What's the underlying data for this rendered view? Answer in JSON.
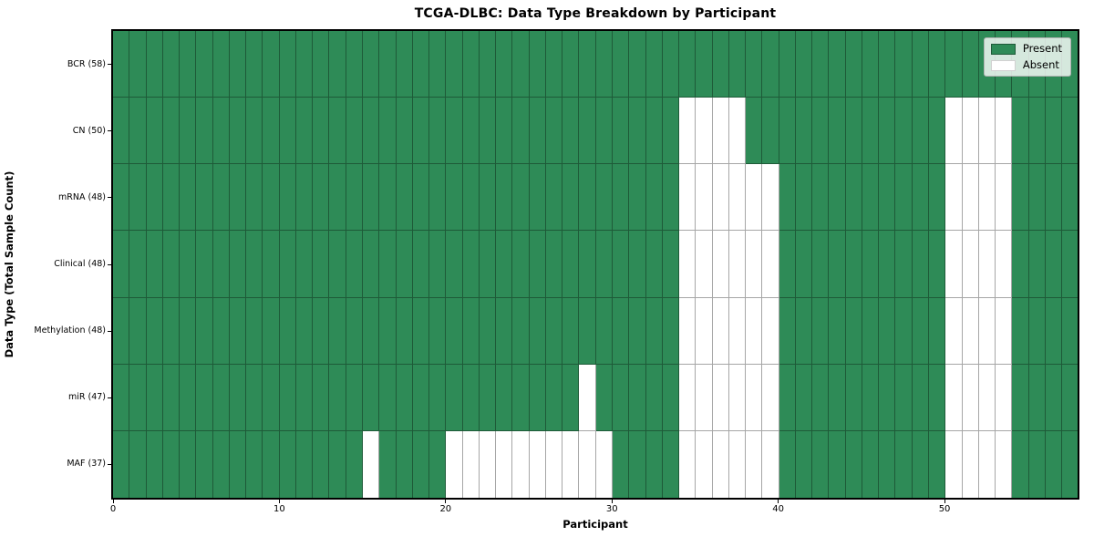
{
  "chart_data": {
    "type": "heatmap",
    "title": "TCGA-DLBC: Data Type Breakdown by Participant",
    "xlabel": "Participant",
    "ylabel": "Data Type (Total Sample Count)",
    "n_participants": 58,
    "x_axis_range": [
      0,
      58
    ],
    "x_ticks": [
      0,
      10,
      20,
      30,
      40,
      50
    ],
    "grid": true,
    "legend_position": "upper right",
    "colors": {
      "present": "#2e8b57",
      "absent": "#ffffff"
    },
    "legend": [
      {
        "label": "Present",
        "key": "present"
      },
      {
        "label": "Absent",
        "key": "absent"
      }
    ],
    "rows": [
      {
        "label": "BCR (58)",
        "data_type": "BCR",
        "total_samples": 58,
        "absent_participants": []
      },
      {
        "label": "CN (50)",
        "data_type": "CN",
        "total_samples": 50,
        "absent_participants": [
          34,
          35,
          36,
          37,
          50,
          51,
          52,
          53
        ]
      },
      {
        "label": "mRNA (48)",
        "data_type": "mRNA",
        "total_samples": 48,
        "absent_participants": [
          34,
          35,
          36,
          37,
          38,
          39,
          50,
          51,
          52,
          53
        ]
      },
      {
        "label": "Clinical (48)",
        "data_type": "Clinical",
        "total_samples": 48,
        "absent_participants": [
          34,
          35,
          36,
          37,
          38,
          39,
          50,
          51,
          52,
          53
        ]
      },
      {
        "label": "Methylation (48)",
        "data_type": "Methylation",
        "total_samples": 48,
        "absent_participants": [
          34,
          35,
          36,
          37,
          38,
          39,
          50,
          51,
          52,
          53
        ]
      },
      {
        "label": "miR (47)",
        "data_type": "miR",
        "total_samples": 47,
        "absent_participants": [
          28,
          34,
          35,
          36,
          37,
          38,
          39,
          50,
          51,
          52,
          53
        ]
      },
      {
        "label": "MAF (37)",
        "data_type": "MAF",
        "total_samples": 37,
        "absent_participants": [
          15,
          20,
          21,
          22,
          23,
          24,
          25,
          26,
          27,
          28,
          29,
          34,
          35,
          36,
          37,
          38,
          39,
          50,
          51,
          52,
          53
        ]
      }
    ]
  }
}
